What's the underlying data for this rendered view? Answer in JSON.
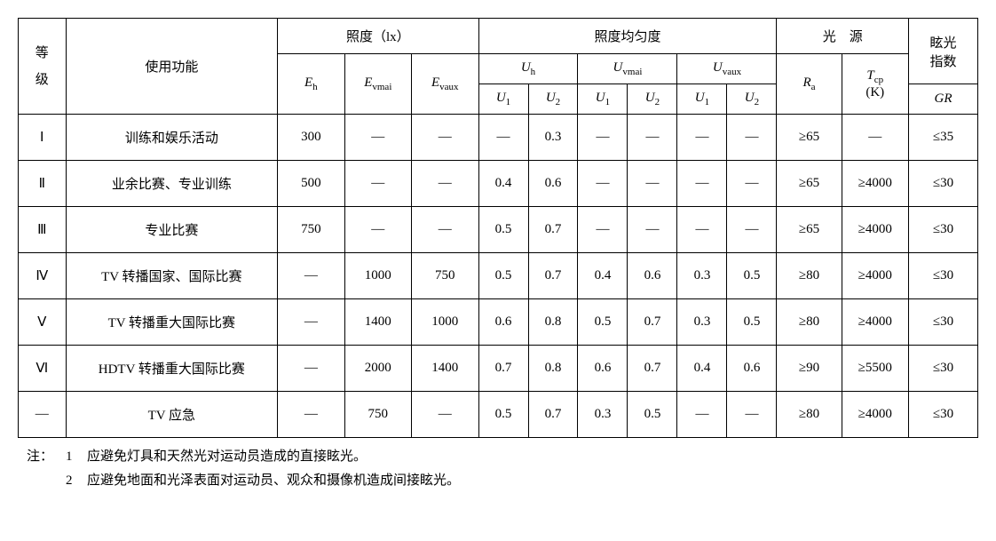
{
  "headers": {
    "grade": "等\n级",
    "func": "使用功能",
    "illum": "照度（lx）",
    "uniform": "照度均匀度",
    "light": "光　源",
    "glare": "眩光\n指数",
    "Eh_html": "<span class='i-sym'>E</span><span class='sub'>h</span>",
    "Evmai_html": "<span class='i-sym'>E</span><span class='sub'>vmai</span>",
    "Evaux_html": "<span class='i-sym'>E</span><span class='sub'>vaux</span>",
    "Uh_html": "<span class='i-sym'>U</span><span class='sub'>h</span>",
    "Uvmai_html": "<span class='i-sym'>U</span><span class='sub'>vmai</span>",
    "Uvaux_html": "<span class='i-sym'>U</span><span class='sub'>vaux</span>",
    "U1_html": "<span class='i-sym'>U</span><span class='sub'>1</span>",
    "U2_html": "<span class='i-sym'>U</span><span class='sub'>2</span>",
    "Ra_html": "<span class='i-sym'>R</span><span class='sub'>a</span>",
    "Tcp_html": "<span class='i-sym'>T</span><span class='sub'>cp</span><br>(K)",
    "GR_html": "<span class='i-sym'>GR</span>"
  },
  "rows": [
    {
      "grade": "Ⅰ",
      "func": "训练和娱乐活动",
      "Eh": "300",
      "Evmai": "—",
      "Evaux": "—",
      "Uh1": "—",
      "Uh2": "0.3",
      "Uvm1": "—",
      "Uvm2": "—",
      "Uva1": "—",
      "Uva2": "—",
      "Ra": "≥65",
      "Tcp": "—",
      "GR": "≤35"
    },
    {
      "grade": "Ⅱ",
      "func": "业余比赛、专业训练",
      "Eh": "500",
      "Evmai": "—",
      "Evaux": "—",
      "Uh1": "0.4",
      "Uh2": "0.6",
      "Uvm1": "—",
      "Uvm2": "—",
      "Uva1": "—",
      "Uva2": "—",
      "Ra": "≥65",
      "Tcp": "≥4000",
      "GR": "≤30"
    },
    {
      "grade": "Ⅲ",
      "func": "专业比赛",
      "Eh": "750",
      "Evmai": "—",
      "Evaux": "—",
      "Uh1": "0.5",
      "Uh2": "0.7",
      "Uvm1": "—",
      "Uvm2": "—",
      "Uva1": "—",
      "Uva2": "—",
      "Ra": "≥65",
      "Tcp": "≥4000",
      "GR": "≤30"
    },
    {
      "grade": "Ⅳ",
      "func": "TV 转播国家、国际比赛",
      "Eh": "—",
      "Evmai": "1000",
      "Evaux": "750",
      "Uh1": "0.5",
      "Uh2": "0.7",
      "Uvm1": "0.4",
      "Uvm2": "0.6",
      "Uva1": "0.3",
      "Uva2": "0.5",
      "Ra": "≥80",
      "Tcp": "≥4000",
      "GR": "≤30"
    },
    {
      "grade": "Ⅴ",
      "func": "TV 转播重大国际比赛",
      "Eh": "—",
      "Evmai": "1400",
      "Evaux": "1000",
      "Uh1": "0.6",
      "Uh2": "0.8",
      "Uvm1": "0.5",
      "Uvm2": "0.7",
      "Uva1": "0.3",
      "Uva2": "0.5",
      "Ra": "≥80",
      "Tcp": "≥4000",
      "GR": "≤30"
    },
    {
      "grade": "Ⅵ",
      "func": "HDTV 转播重大国际比赛",
      "Eh": "—",
      "Evmai": "2000",
      "Evaux": "1400",
      "Uh1": "0.7",
      "Uh2": "0.8",
      "Uvm1": "0.6",
      "Uvm2": "0.7",
      "Uva1": "0.4",
      "Uva2": "0.6",
      "Ra": "≥90",
      "Tcp": "≥5500",
      "GR": "≤30"
    },
    {
      "grade": "—",
      "func": "TV 应急",
      "Eh": "—",
      "Evmai": "750",
      "Evaux": "—",
      "Uh1": "0.5",
      "Uh2": "0.7",
      "Uvm1": "0.3",
      "Uvm2": "0.5",
      "Uva1": "—",
      "Uva2": "—",
      "Ra": "≥80",
      "Tcp": "≥4000",
      "GR": "≤30"
    }
  ],
  "notes": {
    "label": "注：",
    "items": [
      {
        "num": "1",
        "text": "应避免灯具和天然光对运动员造成的直接眩光。"
      },
      {
        "num": "2",
        "text": "应避免地面和光泽表面对运动员、观众和摄像机造成间接眩光。"
      }
    ]
  }
}
